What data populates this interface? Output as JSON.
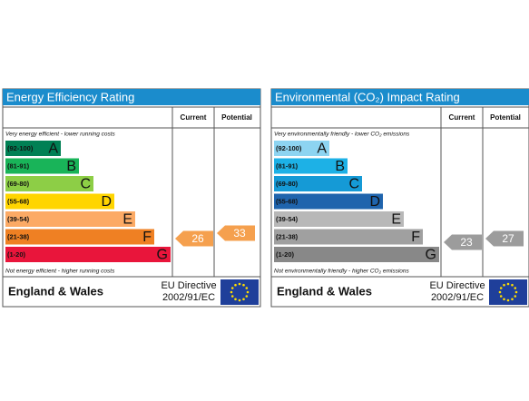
{
  "panels": [
    {
      "title": "Energy Efficiency Rating",
      "current_header": "Current",
      "potential_header": "Potential",
      "top_note": "Very energy efficient - lower running costs",
      "bottom_note": "Not energy efficient - higher running costs",
      "bands": [
        {
          "range": "(92-100)",
          "letter": "A",
          "color": "#008054"
        },
        {
          "range": "(81-91)",
          "letter": "B",
          "color": "#19b459"
        },
        {
          "range": "(69-80)",
          "letter": "C",
          "color": "#8dce46"
        },
        {
          "range": "(55-68)",
          "letter": "D",
          "color": "#ffd500"
        },
        {
          "range": "(39-54)",
          "letter": "E",
          "color": "#fcaa65"
        },
        {
          "range": "(21-38)",
          "letter": "F",
          "color": "#ef8023"
        },
        {
          "range": "(1-20)",
          "letter": "G",
          "color": "#e9153b"
        }
      ],
      "current": 26,
      "potential": 33,
      "arrow_color": "#f5a04e",
      "region": "England & Wales",
      "directive": "EU Directive",
      "directive_code": "2002/91/EC"
    },
    {
      "title": "Environmental (CO₂) Impact Rating",
      "current_header": "Current",
      "potential_header": "Potential",
      "top_note": "Very environmentally friendly - lower CO₂ emissions",
      "bottom_note": "Not environmentally friendly - higher CO₂ emissions",
      "bands": [
        {
          "range": "(92-100)",
          "letter": "A",
          "color": "#8dd4f1"
        },
        {
          "range": "(81-91)",
          "letter": "B",
          "color": "#1db1e6"
        },
        {
          "range": "(69-80)",
          "letter": "C",
          "color": "#159ad6"
        },
        {
          "range": "(55-68)",
          "letter": "D",
          "color": "#1f64ad"
        },
        {
          "range": "(39-54)",
          "letter": "E",
          "color": "#b8b8b8"
        },
        {
          "range": "(21-38)",
          "letter": "F",
          "color": "#a0a0a0"
        },
        {
          "range": "(1-20)",
          "letter": "G",
          "color": "#888888"
        }
      ],
      "current": 23,
      "potential": 27,
      "arrow_color": "#9c9c9c",
      "region": "England & Wales",
      "directive": "EU Directive",
      "directive_code": "2002/91/EC"
    }
  ]
}
